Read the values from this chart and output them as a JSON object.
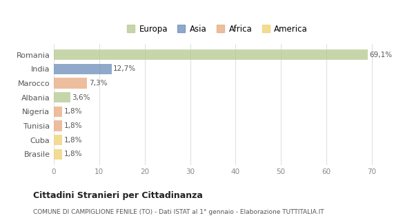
{
  "categories": [
    "Romania",
    "India",
    "Marocco",
    "Albania",
    "Nigeria",
    "Tunisia",
    "Cuba",
    "Brasile"
  ],
  "values": [
    69.1,
    12.7,
    7.3,
    3.6,
    1.8,
    1.8,
    1.8,
    1.8
  ],
  "labels": [
    "69,1%",
    "12,7%",
    "7,3%",
    "3,6%",
    "1,8%",
    "1,8%",
    "1,8%",
    "1,8%"
  ],
  "colors": [
    "#b5c98e",
    "#6b8cba",
    "#e8a97e",
    "#b5c98e",
    "#e8a97e",
    "#e8a97e",
    "#f0d070",
    "#f0d070"
  ],
  "legend_labels": [
    "Europa",
    "Asia",
    "Africa",
    "America"
  ],
  "legend_colors": [
    "#b5c98e",
    "#6b8cba",
    "#e8a97e",
    "#f0d070"
  ],
  "title": "Cittadini Stranieri per Cittadinanza",
  "subtitle": "COMUNE DI CAMPIGLIONE FENILE (TO) - Dati ISTAT al 1° gennaio - Elaborazione TUTTITALIA.IT",
  "xlim": [
    0,
    72
  ],
  "xticks": [
    0,
    10,
    20,
    30,
    40,
    50,
    60,
    70
  ],
  "background_color": "#ffffff",
  "grid_color": "#e0e0e0",
  "bar_alpha": 0.75
}
